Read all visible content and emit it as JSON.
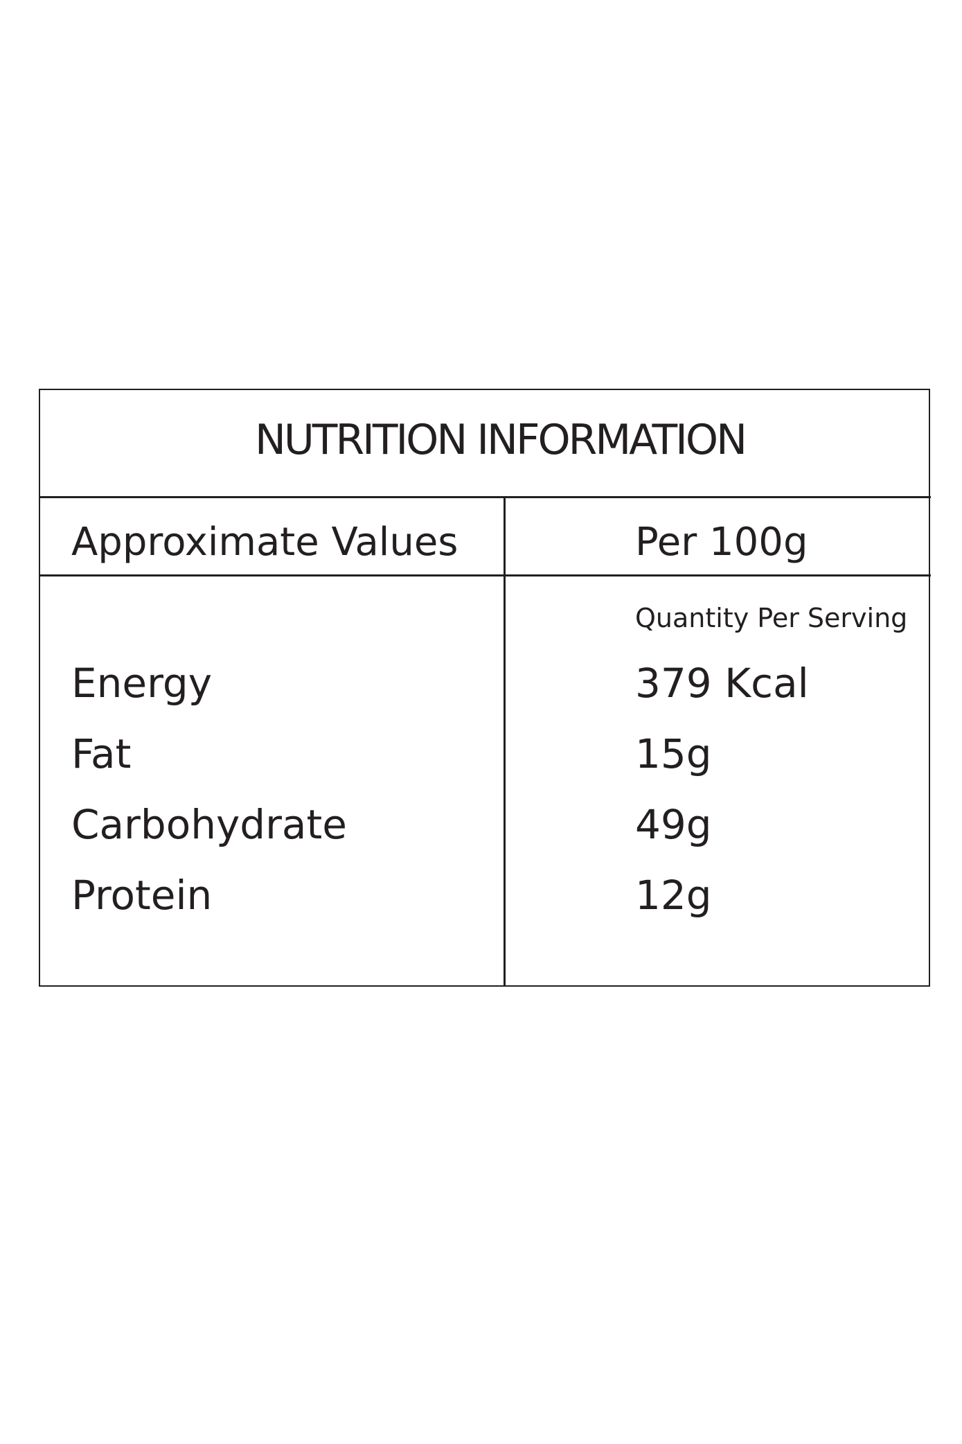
{
  "table": {
    "title": "NUTRITION INFORMATION",
    "header": [
      "Approximate Values",
      "Per 100g"
    ],
    "subheader": "Quantity Per Serving",
    "rows": [
      [
        "Energy",
        "379 Kcal"
      ],
      [
        "Fat",
        "15g"
      ],
      [
        "Carbohydrate",
        "49g"
      ],
      [
        "Protein",
        "12g"
      ]
    ]
  }
}
